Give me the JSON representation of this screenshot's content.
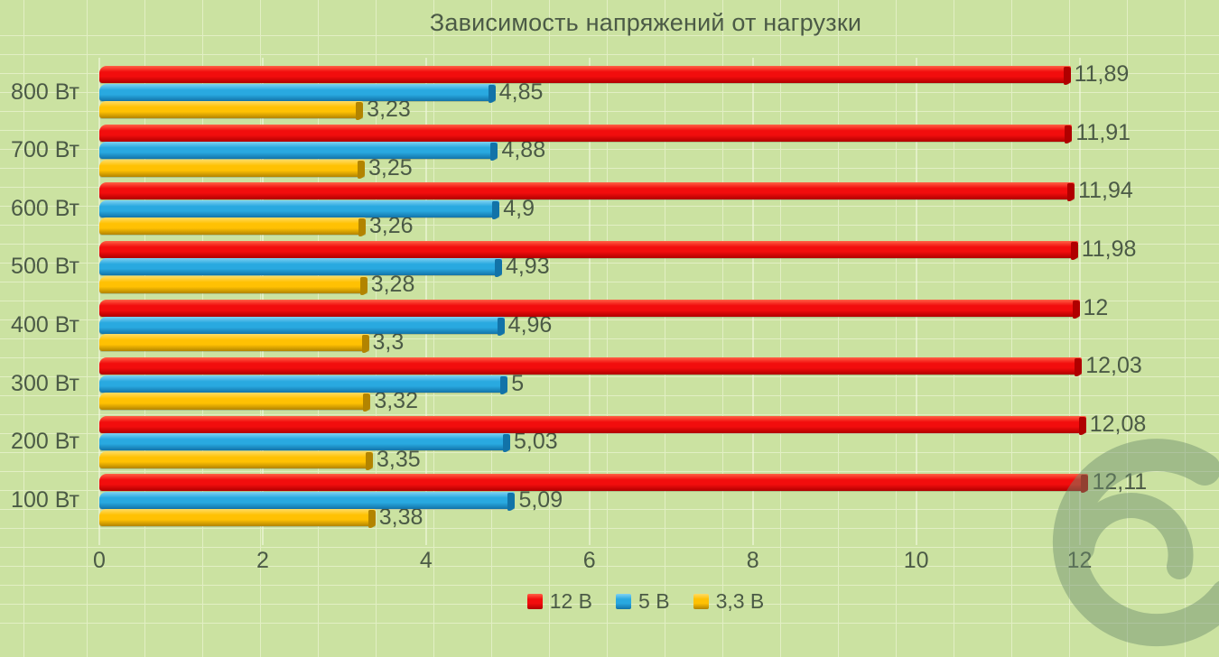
{
  "title": "Зависимость напряжений от нагрузки",
  "colors": {
    "background": "#cbe2a1",
    "gridline": "#e2efc4",
    "text": "#4b5a46",
    "red": "#f20d0d",
    "red_light": "#ff6246",
    "red_dark": "#b00000",
    "blue": "#29a9e0",
    "blue_light": "#7fd2f2",
    "blue_dark": "#1273a8",
    "yellow": "#ffc103",
    "yellow_light": "#ffdc64",
    "yellow_dark": "#b28400",
    "watermark": "#6e8e6e"
  },
  "watermark": {
    "icon": "e-swirl-logo"
  },
  "chart_data": {
    "type": "bar",
    "orientation": "horizontal",
    "title": "Зависимость напряжений от нагрузки",
    "xlabel": "",
    "ylabel": "",
    "xlim": [
      0,
      13.7
    ],
    "grid": "worksheet-cells",
    "legend_position": "bottom",
    "value_labels": true,
    "categories": [
      "800 Вт",
      "700 Вт",
      "600 Вт",
      "500 Вт",
      "400 Вт",
      "300 Вт",
      "200 Вт",
      "100 Вт"
    ],
    "x_ticks": [
      {
        "value": 0,
        "label": "0"
      },
      {
        "value": 2,
        "label": "2"
      },
      {
        "value": 4,
        "label": "4"
      },
      {
        "value": 6,
        "label": "6"
      },
      {
        "value": 8,
        "label": "8"
      },
      {
        "value": 10,
        "label": "10"
      },
      {
        "value": 12,
        "label": "12"
      }
    ],
    "series": [
      {
        "name": "12 В",
        "color_key": "red",
        "values": [
          11.89,
          11.91,
          11.94,
          11.98,
          12,
          12.03,
          12.08,
          12.11
        ],
        "labels": [
          "11,89",
          "11,91",
          "11,94",
          "11,98",
          "12",
          "12,03",
          "12,08",
          "12,11"
        ]
      },
      {
        "name": "5 В",
        "color_key": "blue",
        "values": [
          4.85,
          4.88,
          4.9,
          4.93,
          4.96,
          5,
          5.03,
          5.09
        ],
        "labels": [
          "4,85",
          "4,88",
          "4,9",
          "4,93",
          "4,96",
          "5",
          "5,03",
          "5,09"
        ]
      },
      {
        "name": "3,3 В",
        "color_key": "yellow",
        "values": [
          3.23,
          3.25,
          3.26,
          3.28,
          3.3,
          3.32,
          3.35,
          3.38
        ],
        "labels": [
          "3,23",
          "3,25",
          "3,26",
          "3,28",
          "3,3",
          "3,32",
          "3,35",
          "3,38"
        ]
      }
    ]
  }
}
